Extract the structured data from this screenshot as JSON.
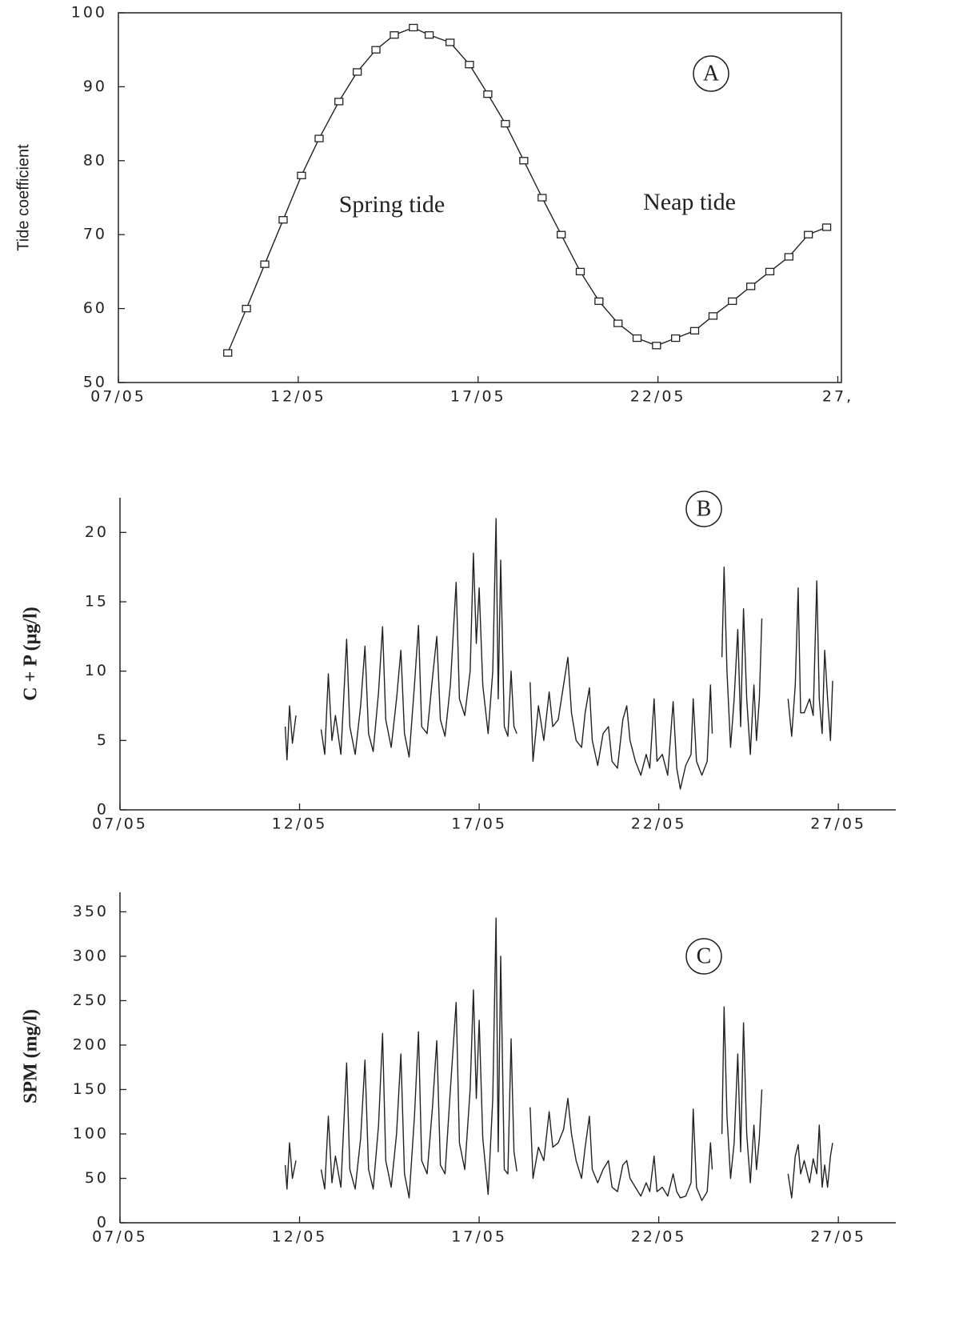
{
  "chart_data": [
    {
      "type": "line",
      "ylabel": "Tide coefficient",
      "panel_label": "A",
      "annotations": [
        "Spring tide",
        "Neap tide"
      ],
      "color": "#222",
      "markers": true,
      "x": [
        10.04,
        10.56,
        11.07,
        11.58,
        12.09,
        12.58,
        13.13,
        13.64,
        14.16,
        14.67,
        15.2,
        15.64,
        16.22,
        16.76,
        17.27,
        17.76,
        18.27,
        18.78,
        19.31,
        19.84,
        20.36,
        20.89,
        21.42,
        21.96,
        22.49,
        23.02,
        23.53,
        24.07,
        24.58,
        25.11,
        25.64,
        26.18,
        26.69
      ],
      "values": [
        54,
        60,
        66,
        72,
        78,
        83,
        88,
        92,
        95,
        97,
        98,
        97,
        96,
        93,
        89,
        85,
        80,
        75,
        70,
        65,
        61,
        58,
        56,
        55,
        56,
        57,
        59,
        61,
        63,
        65,
        67,
        70,
        71
      ],
      "xlim": [
        7,
        27.1
      ],
      "xticks": [
        {
          "value": 7,
          "label": "07/05"
        },
        {
          "value": 12,
          "label": "12/05"
        },
        {
          "value": 17,
          "label": "17/05"
        },
        {
          "value": 22,
          "label": "22/05"
        },
        {
          "value": 27,
          "label": "27,"
        }
      ],
      "ylim": [
        50,
        100
      ],
      "yticks": [
        50,
        60,
        70,
        80,
        90,
        100
      ]
    },
    {
      "type": "line",
      "ylabel": "C + P (µg/l)",
      "panel_label": "B",
      "color": "#222",
      "markers": false,
      "x": [
        11.6,
        11.65,
        11.72,
        11.8,
        11.9,
        12.2,
        12.6,
        12.7,
        12.8,
        12.9,
        13.0,
        13.15,
        13.31,
        13.4,
        13.55,
        13.7,
        13.82,
        13.92,
        14.05,
        14.2,
        14.31,
        14.4,
        14.55,
        14.7,
        14.82,
        14.92,
        15.05,
        15.2,
        15.31,
        15.4,
        15.55,
        15.7,
        15.82,
        15.92,
        16.05,
        16.2,
        16.36,
        16.45,
        16.6,
        16.75,
        16.84,
        16.92,
        17.0,
        17.1,
        17.25,
        17.38,
        17.47,
        17.53,
        17.6,
        17.7,
        17.8,
        17.89,
        17.97,
        18.05,
        18.25,
        18.42,
        18.5,
        18.65,
        18.8,
        18.95,
        19.05,
        19.2,
        19.35,
        19.47,
        19.57,
        19.7,
        19.85,
        19.95,
        20.07,
        20.15,
        20.3,
        20.45,
        20.6,
        20.7,
        20.85,
        21.0,
        21.11,
        21.2,
        21.35,
        21.5,
        21.65,
        21.75,
        21.87,
        21.95,
        22.1,
        22.25,
        22.4,
        22.5,
        22.6,
        22.75,
        22.9,
        22.96,
        23.05,
        23.2,
        23.35,
        23.44,
        23.49,
        23.6,
        23.76,
        23.82,
        23.9,
        24.0,
        24.1,
        24.2,
        24.28,
        24.36,
        24.45,
        24.55,
        24.65,
        24.72,
        24.8,
        24.87,
        25.2,
        25.6,
        25.7,
        25.8,
        25.88,
        25.95,
        26.05,
        26.2,
        26.3,
        26.4,
        26.47,
        26.55,
        26.62,
        26.7,
        26.78,
        26.84
      ],
      "values": [
        6,
        3.6,
        7.5,
        4.8,
        6.8,
        null,
        5.8,
        4,
        9.8,
        5,
        6.8,
        4,
        12.3,
        6,
        4,
        7.5,
        11.8,
        5.5,
        4.2,
        8.5,
        13.2,
        6.5,
        4.5,
        8,
        11.5,
        5.5,
        3.8,
        9,
        13.3,
        6,
        5.5,
        9.5,
        12.5,
        6.5,
        5.3,
        9,
        16.4,
        8,
        6.8,
        10,
        18.5,
        12,
        16,
        9,
        5.5,
        10,
        21,
        8,
        18,
        6,
        5.3,
        10,
        6,
        5.5,
        null,
        9.2,
        3.5,
        7.5,
        5,
        8.5,
        6,
        6.5,
        9,
        11,
        7,
        5,
        4.5,
        7,
        8.8,
        5,
        3.2,
        5.5,
        6,
        3.5,
        3,
        6.5,
        7.5,
        5,
        3.5,
        2.5,
        4,
        3,
        8,
        3.5,
        4,
        2.5,
        7.8,
        3,
        1.5,
        3.2,
        4,
        8,
        3.5,
        2.5,
        3.5,
        9,
        5.5,
        null,
        11,
        17.5,
        10,
        4.5,
        8,
        13,
        6,
        14.5,
        8,
        4,
        9,
        5,
        8,
        13.8,
        null,
        8,
        5.3,
        9,
        16,
        7,
        7,
        8,
        6.8,
        16.5,
        8,
        5.5,
        11.5,
        8,
        5,
        9.3
      ],
      "xlim": [
        7,
        28.6
      ],
      "xticks": [
        {
          "value": 7,
          "label": "07/05"
        },
        {
          "value": 12,
          "label": "12/05"
        },
        {
          "value": 17,
          "label": "17/05"
        },
        {
          "value": 22,
          "label": "22/05"
        },
        {
          "value": 27,
          "label": "27/05"
        }
      ],
      "ylim": [
        0,
        22.5
      ],
      "yticks": [
        0,
        5,
        10,
        15,
        20
      ]
    },
    {
      "type": "line",
      "ylabel": "SPM (mg/l)",
      "panel_label": "C",
      "color": "#222",
      "markers": false,
      "x": [
        11.6,
        11.65,
        11.72,
        11.8,
        11.9,
        12.2,
        12.6,
        12.7,
        12.8,
        12.9,
        13.0,
        13.15,
        13.31,
        13.4,
        13.55,
        13.7,
        13.82,
        13.92,
        14.05,
        14.2,
        14.31,
        14.4,
        14.55,
        14.7,
        14.82,
        14.92,
        15.05,
        15.2,
        15.31,
        15.4,
        15.55,
        15.7,
        15.82,
        15.92,
        16.05,
        16.2,
        16.36,
        16.45,
        16.6,
        16.75,
        16.84,
        16.92,
        17.0,
        17.1,
        17.25,
        17.38,
        17.47,
        17.53,
        17.6,
        17.7,
        17.8,
        17.89,
        17.97,
        18.05,
        18.25,
        18.42,
        18.5,
        18.65,
        18.8,
        18.95,
        19.05,
        19.2,
        19.35,
        19.47,
        19.57,
        19.7,
        19.85,
        19.95,
        20.07,
        20.15,
        20.3,
        20.45,
        20.6,
        20.7,
        20.85,
        21.0,
        21.11,
        21.2,
        21.35,
        21.5,
        21.65,
        21.75,
        21.87,
        21.95,
        22.1,
        22.25,
        22.4,
        22.5,
        22.6,
        22.75,
        22.9,
        22.96,
        23.05,
        23.2,
        23.35,
        23.44,
        23.49,
        23.6,
        23.76,
        23.82,
        23.9,
        24.0,
        24.1,
        24.2,
        24.28,
        24.36,
        24.45,
        24.55,
        24.65,
        24.72,
        24.8,
        24.87,
        25.2,
        25.6,
        25.7,
        25.8,
        25.88,
        25.95,
        26.05,
        26.2,
        26.3,
        26.4,
        26.47,
        26.55,
        26.62,
        26.7,
        26.78,
        26.84
      ],
      "values": [
        65,
        38,
        90,
        50,
        70,
        null,
        60,
        38,
        120,
        45,
        75,
        40,
        180,
        60,
        38,
        95,
        183,
        60,
        38,
        110,
        213,
        70,
        40,
        100,
        190,
        55,
        28,
        120,
        215,
        70,
        55,
        130,
        205,
        65,
        55,
        150,
        248,
        90,
        60,
        150,
        262,
        140,
        228,
        95,
        32,
        140,
        343,
        80,
        300,
        60,
        55,
        207,
        80,
        58,
        null,
        130,
        50,
        85,
        70,
        125,
        85,
        90,
        105,
        140,
        100,
        70,
        50,
        85,
        120,
        60,
        45,
        60,
        70,
        40,
        35,
        65,
        70,
        50,
        40,
        30,
        45,
        35,
        75,
        35,
        40,
        30,
        55,
        35,
        28,
        30,
        45,
        128,
        40,
        25,
        35,
        90,
        60,
        null,
        100,
        243,
        120,
        50,
        90,
        190,
        80,
        225,
        100,
        45,
        110,
        60,
        95,
        150,
        null,
        55,
        28,
        75,
        88,
        55,
        70,
        45,
        72,
        55,
        110,
        40,
        65,
        40,
        75,
        90
      ],
      "xlim": [
        7,
        28.6
      ],
      "xticks": [
        {
          "value": 7,
          "label": "07/05"
        },
        {
          "value": 12,
          "label": "12/05"
        },
        {
          "value": 17,
          "label": "17/05"
        },
        {
          "value": 22,
          "label": "22/05"
        },
        {
          "value": 27,
          "label": "27/05"
        }
      ],
      "ylim": [
        0,
        372
      ],
      "yticks": [
        0,
        50,
        100,
        150,
        200,
        250,
        300,
        350
      ]
    }
  ]
}
